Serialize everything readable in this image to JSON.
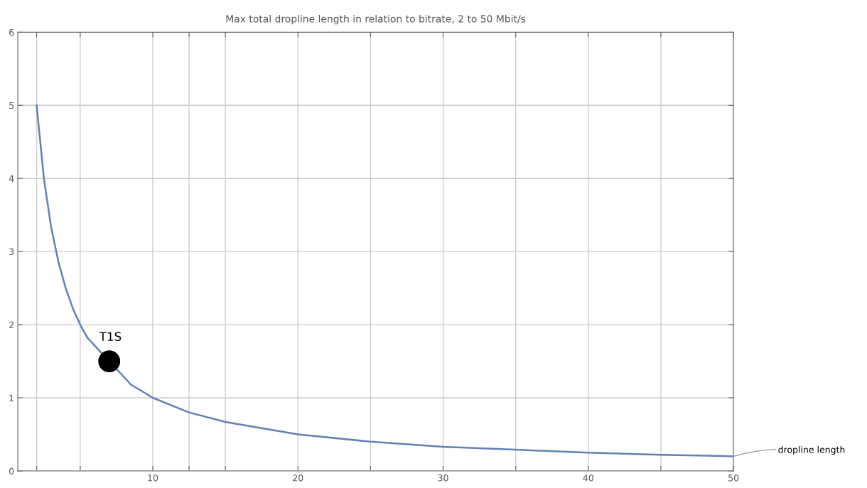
{
  "chart_data": {
    "type": "line",
    "title": "Max total dropline length in relation to bitrate, 2 to 50 Mbit/s",
    "series": [
      {
        "name": "dropline length",
        "color": "#5e81b5",
        "marker": "none",
        "x": [
          2,
          2.5,
          3,
          3.5,
          4,
          4.5,
          5,
          5.5,
          8.5,
          10,
          12.5,
          15,
          20,
          25,
          30,
          35,
          40,
          45,
          50
        ],
        "values": [
          5,
          4,
          3.33,
          2.86,
          2.5,
          2.22,
          2,
          1.82,
          1.18,
          1,
          0.8,
          0.67,
          0.5,
          0.4,
          0.33,
          0.29,
          0.25,
          0.22,
          0.2
        ]
      },
      {
        "name": "T1S",
        "type": "scatter",
        "color": "#000000",
        "marker": "circle",
        "x": [
          7
        ],
        "values": [
          1.5
        ]
      }
    ],
    "xlim": [
      0.7,
      50
    ],
    "ylim": [
      0,
      6
    ],
    "xticks": [
      {
        "value": 2,
        "label": null
      },
      {
        "value": 5,
        "label": null
      },
      10,
      {
        "value": 12.5,
        "label": null
      },
      {
        "value": 15,
        "label": null
      },
      20,
      {
        "value": 25,
        "label": null
      },
      30,
      {
        "value": 35,
        "label": null
      },
      40,
      {
        "value": 45,
        "label": null
      },
      50
    ],
    "yticks": [
      0,
      1,
      2,
      3,
      4,
      5,
      6
    ],
    "grid": true,
    "legend": false
  }
}
